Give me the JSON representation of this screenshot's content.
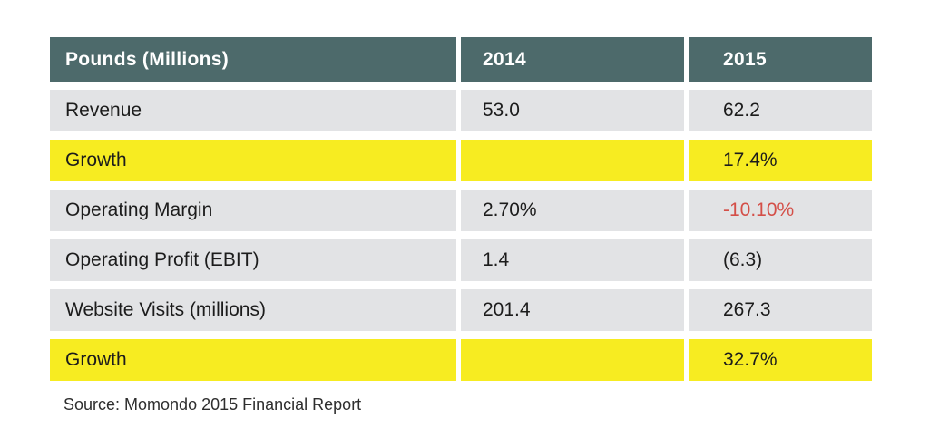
{
  "table": {
    "columns": [
      "Pounds (Millions)",
      "2014",
      "2015"
    ],
    "rows": [
      {
        "label": "Revenue",
        "v2014": "53.0",
        "v2015": "62.2",
        "highlight": false,
        "negative_2015": false
      },
      {
        "label": "Growth",
        "v2014": "",
        "v2015": "17.4%",
        "highlight": true,
        "negative_2015": false
      },
      {
        "label": "Operating Margin",
        "v2014": "2.70%",
        "v2015": "-10.10%",
        "highlight": false,
        "negative_2015": true
      },
      {
        "label": "Operating Profit (EBIT)",
        "v2014": "1.4",
        "v2015": "(6.3)",
        "highlight": false,
        "negative_2015": false
      },
      {
        "label": "Website Visits (millions)",
        "v2014": "201.4",
        "v2015": "267.3",
        "highlight": false,
        "negative_2015": false
      },
      {
        "label": "Growth",
        "v2014": "",
        "v2015": "32.7%",
        "highlight": true,
        "negative_2015": false
      }
    ]
  },
  "source": "Source: Momondo 2015 Financial Report",
  "colors": {
    "header_bg": "#4d6a6b",
    "header_text": "#ffffff",
    "row_bg": "#e2e3e5",
    "highlight_bg": "#f7ec21",
    "text": "#1c1c1c",
    "negative": "#d44f48"
  },
  "chart_data": {
    "type": "table",
    "title": "Momondo financial results, Pounds (Millions)",
    "columns": [
      "Pounds (Millions)",
      "2014",
      "2015"
    ],
    "rows": [
      [
        "Revenue",
        "53.0",
        "62.2"
      ],
      [
        "Growth",
        "",
        "17.4%"
      ],
      [
        "Operating Margin",
        "2.70%",
        "-10.10%"
      ],
      [
        "Operating Profit (EBIT)",
        "1.4",
        "(6.3)"
      ],
      [
        "Website Visits (millions)",
        "201.4",
        "267.3"
      ],
      [
        "Growth",
        "",
        "32.7%"
      ]
    ],
    "numeric": {
      "revenue": {
        "2014": 53.0,
        "2015": 62.2
      },
      "revenue_growth_pct_2015": 17.4,
      "operating_margin_pct": {
        "2014": 2.7,
        "2015": -10.1
      },
      "operating_profit_ebit": {
        "2014": 1.4,
        "2015": -6.3
      },
      "website_visits_millions": {
        "2014": 201.4,
        "2015": 267.3
      },
      "visits_growth_pct_2015": 32.7
    },
    "source": "Source: Momondo 2015 Financial Report"
  }
}
